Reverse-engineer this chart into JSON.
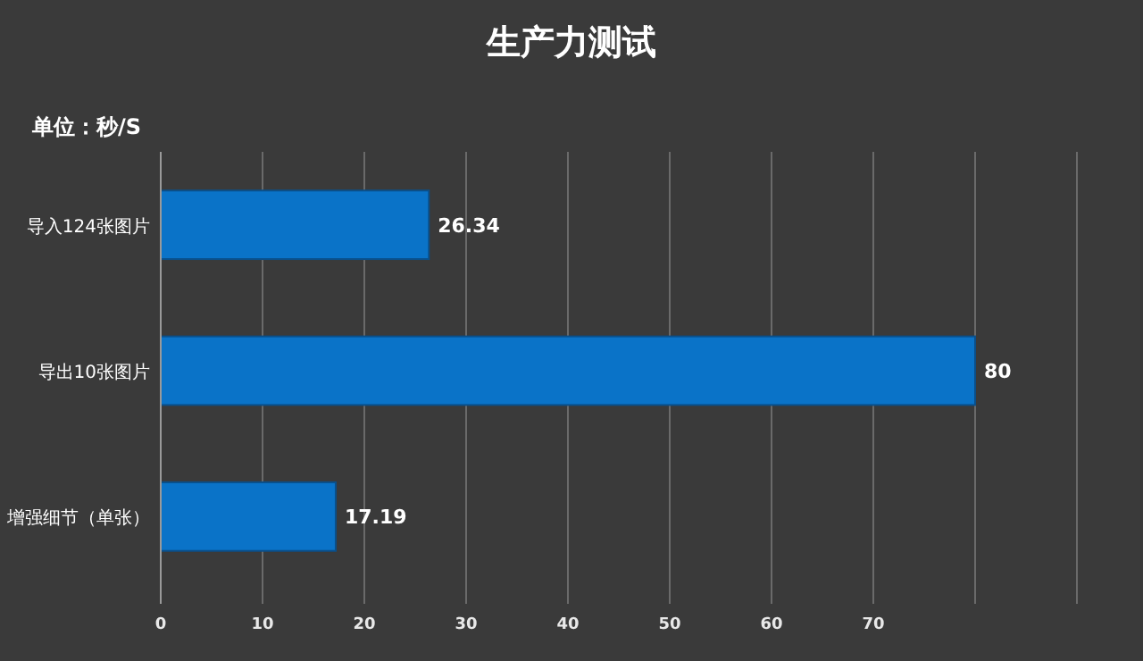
{
  "chart_data": {
    "type": "bar",
    "orientation": "horizontal",
    "title": "生产力测试",
    "subtitle": "单位：秒/S",
    "categories": [
      "导入124张图片",
      "导出10张图片",
      "增强细节（单张）"
    ],
    "values": [
      26.34,
      80,
      17.19
    ],
    "color": "#0a73c8",
    "data_labels": true,
    "xlim": [
      0,
      90
    ],
    "xticks": [
      0,
      10,
      20,
      30,
      40,
      50,
      60,
      70,
      {
        "value": 80,
        "label": null
      },
      {
        "value": 90,
        "label": null
      }
    ],
    "grid": "x"
  }
}
